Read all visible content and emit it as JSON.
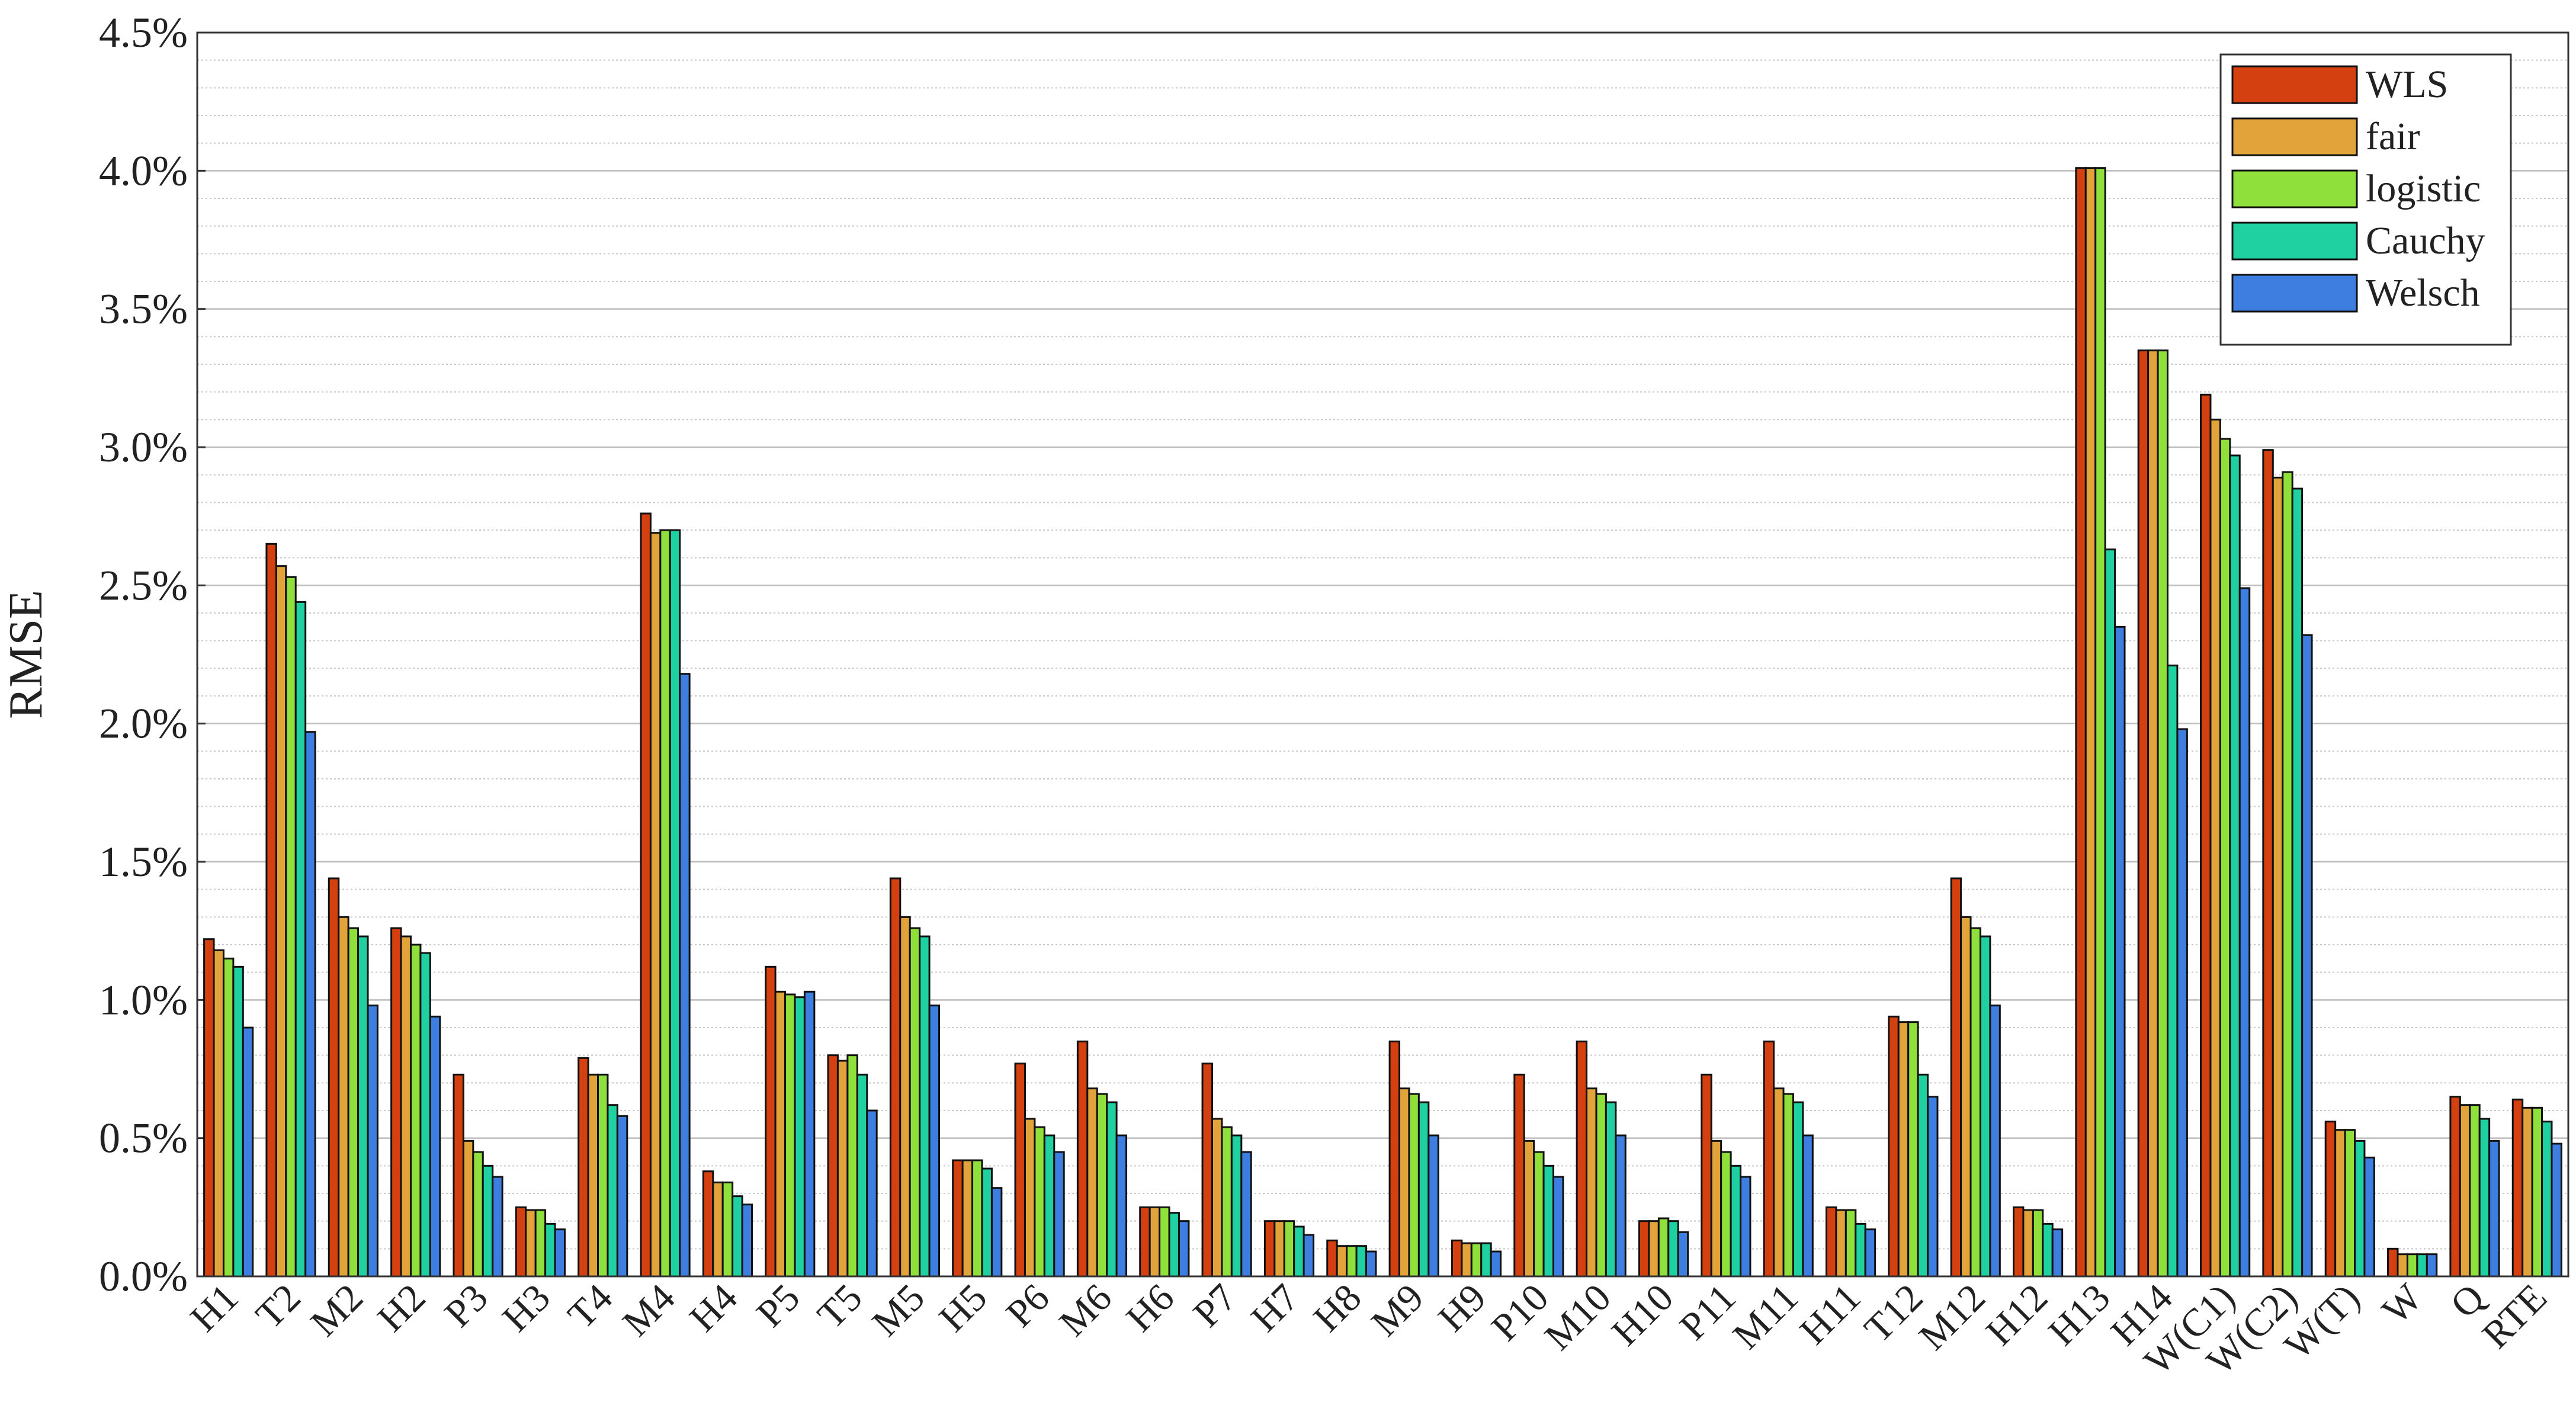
{
  "chart_data": {
    "type": "bar",
    "y_label": "RMSE",
    "categories": [
      "H1",
      "T2",
      "M2",
      "H2",
      "P3",
      "H3",
      "T4",
      "M4",
      "H4",
      "P5",
      "T5",
      "M5",
      "H5",
      "P6",
      "M6",
      "H6",
      "P7",
      "H7",
      "H8",
      "M9",
      "H9",
      "P10",
      "M10",
      "H10",
      "P11",
      "M11",
      "H11",
      "T12",
      "M12",
      "H12",
      "H13",
      "H14",
      "W(C1)",
      "W(C2)",
      "W(T)",
      "W",
      "Q",
      "RTE"
    ],
    "series": [
      {
        "name": "WLS",
        "color": "#d4400f",
        "values": [
          1.22,
          2.65,
          1.44,
          1.26,
          0.73,
          0.25,
          0.79,
          2.76,
          0.38,
          1.12,
          0.8,
          1.44,
          0.42,
          0.77,
          0.85,
          0.25,
          0.77,
          0.2,
          0.13,
          0.85,
          0.13,
          0.73,
          0.85,
          0.2,
          0.73,
          0.85,
          0.25,
          0.94,
          1.44,
          0.25,
          4.01,
          3.35,
          3.19,
          2.99,
          0.56,
          0.1,
          0.65,
          0.64
        ]
      },
      {
        "name": "fair",
        "color": "#e2a43a",
        "values": [
          1.18,
          2.57,
          1.3,
          1.23,
          0.49,
          0.24,
          0.73,
          2.69,
          0.34,
          1.03,
          0.78,
          1.3,
          0.42,
          0.57,
          0.68,
          0.25,
          0.57,
          0.2,
          0.11,
          0.68,
          0.12,
          0.49,
          0.68,
          0.2,
          0.49,
          0.68,
          0.24,
          0.92,
          1.3,
          0.24,
          4.01,
          3.35,
          3.1,
          2.89,
          0.53,
          0.08,
          0.62,
          0.61
        ]
      },
      {
        "name": "logistic",
        "color": "#8fe03a",
        "values": [
          1.15,
          2.53,
          1.26,
          1.2,
          0.45,
          0.24,
          0.73,
          2.7,
          0.34,
          1.02,
          0.8,
          1.26,
          0.42,
          0.54,
          0.66,
          0.25,
          0.54,
          0.2,
          0.11,
          0.66,
          0.12,
          0.45,
          0.66,
          0.21,
          0.45,
          0.66,
          0.24,
          0.92,
          1.26,
          0.24,
          4.01,
          3.35,
          3.03,
          2.91,
          0.53,
          0.08,
          0.62,
          0.61
        ]
      },
      {
        "name": "Cauchy",
        "color": "#1fd0a0",
        "values": [
          1.12,
          2.44,
          1.23,
          1.17,
          0.4,
          0.19,
          0.62,
          2.7,
          0.29,
          1.01,
          0.73,
          1.23,
          0.39,
          0.51,
          0.63,
          0.23,
          0.51,
          0.18,
          0.11,
          0.63,
          0.12,
          0.4,
          0.63,
          0.2,
          0.4,
          0.63,
          0.19,
          0.73,
          1.23,
          0.19,
          2.63,
          2.21,
          2.97,
          2.85,
          0.49,
          0.08,
          0.57,
          0.56
        ]
      },
      {
        "name": "Welsch",
        "color": "#3d7ee0",
        "values": [
          0.9,
          1.97,
          0.98,
          0.94,
          0.36,
          0.17,
          0.58,
          2.18,
          0.26,
          1.03,
          0.6,
          0.98,
          0.32,
          0.45,
          0.51,
          0.2,
          0.45,
          0.15,
          0.09,
          0.51,
          0.09,
          0.36,
          0.51,
          0.16,
          0.36,
          0.51,
          0.17,
          0.65,
          0.98,
          0.17,
          2.35,
          1.98,
          2.49,
          2.32,
          0.43,
          0.08,
          0.49,
          0.48
        ]
      }
    ],
    "ylim": [
      0,
      4.5
    ],
    "yticks": [
      {
        "value": 0,
        "label": "0.0%"
      },
      {
        "value": 0.5,
        "label": "0.5%"
      },
      {
        "value": 1,
        "label": "1.0%"
      },
      {
        "value": 1.5,
        "label": "1.5%"
      },
      {
        "value": 2,
        "label": "2.0%"
      },
      {
        "value": 2.5,
        "label": "2.5%"
      },
      {
        "value": 3,
        "label": "3.0%"
      },
      {
        "value": 3.5,
        "label": "3.5%"
      },
      {
        "value": 4,
        "label": "4.0%"
      },
      {
        "value": 4.5,
        "label": "4.5%"
      }
    ],
    "grid": true,
    "minor_grid": true,
    "legend": "upper right"
  }
}
